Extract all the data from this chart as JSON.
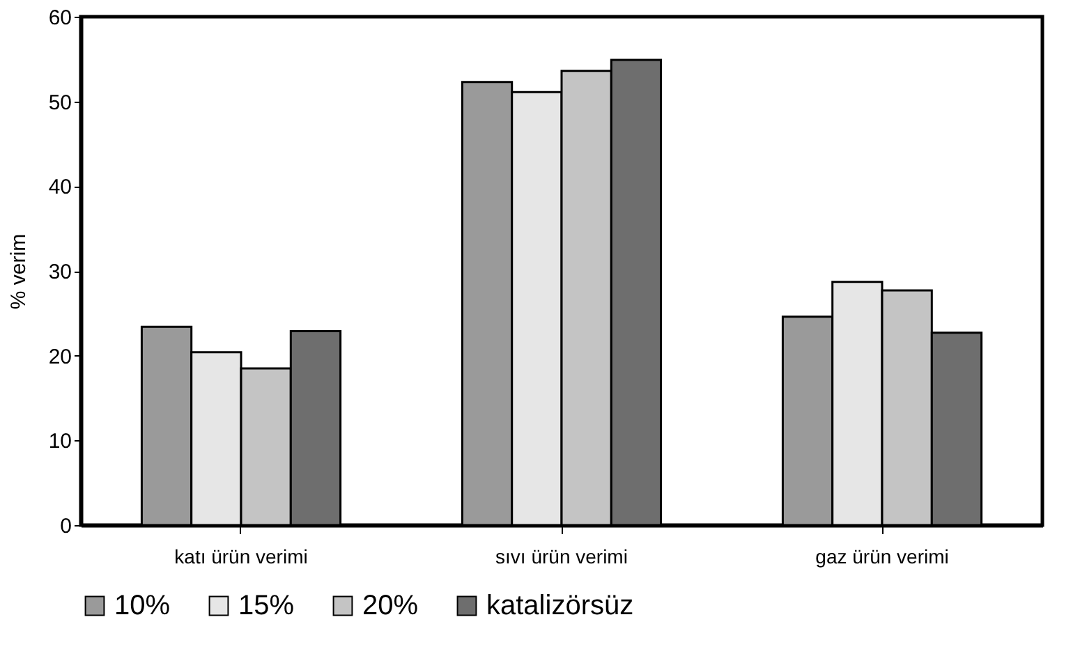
{
  "chart_data": {
    "type": "bar",
    "ylabel": "% verim",
    "categories": [
      "katı ürün verimi",
      "sıvı ürün verimi",
      "gaz ürün verimi"
    ],
    "series": [
      {
        "name": "10%",
        "color": "#9a9a9a",
        "values": [
          23.4,
          52.3,
          24.6
        ]
      },
      {
        "name": "15%",
        "color": "#e6e6e6",
        "values": [
          20.4,
          51.1,
          28.7
        ]
      },
      {
        "name": "20%",
        "color": "#c4c4c4",
        "values": [
          18.5,
          53.6,
          27.7
        ]
      },
      {
        "name": "katalizörsüz",
        "color": "#6e6e6e",
        "values": [
          22.9,
          54.9,
          22.7
        ]
      }
    ],
    "ylim": [
      0,
      60
    ],
    "yticks": [
      0,
      10,
      20,
      30,
      40,
      50,
      60
    ],
    "grid": false,
    "legend": "bottom"
  }
}
